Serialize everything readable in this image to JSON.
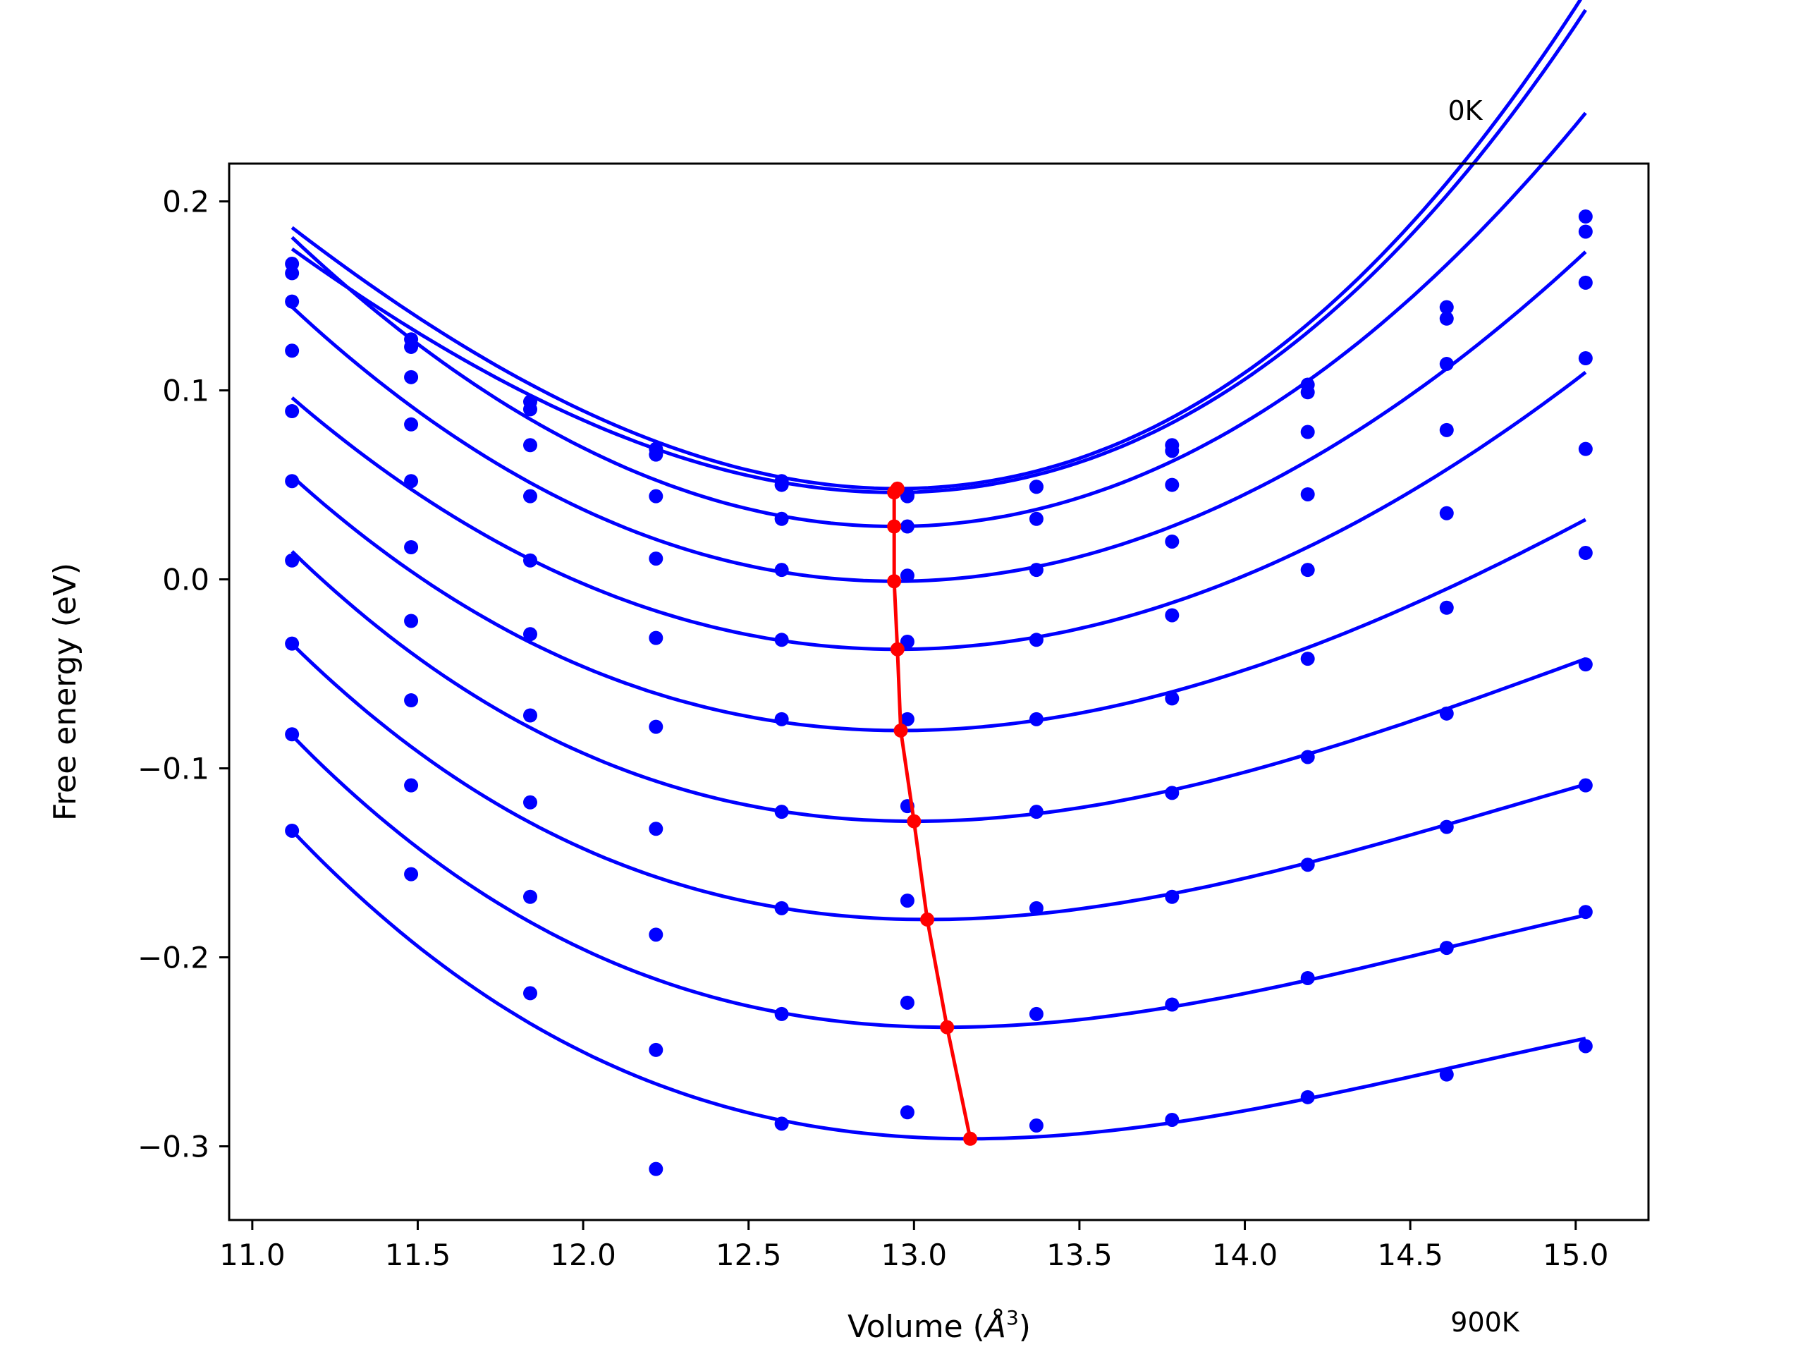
{
  "chart_data": {
    "type": "scatter",
    "title": "",
    "xlabel_prefix": "Volume (",
    "xlabel_unit": "Å",
    "xlabel_exp": "3",
    "xlabel_suffix": ")",
    "ylabel": "Free energy (eV)",
    "xlim": [
      10.93,
      15.22
    ],
    "ylim": [
      -0.339,
      0.22
    ],
    "xticks": [
      11.0,
      11.5,
      12.0,
      12.5,
      13.0,
      13.5,
      14.0,
      14.5,
      15.0
    ],
    "xtick_labels": [
      "11.0",
      "11.5",
      "12.0",
      "12.5",
      "13.0",
      "13.5",
      "14.0",
      "14.5",
      "15.0"
    ],
    "yticks": [
      0.2,
      0.1,
      0.0,
      -0.1,
      -0.2,
      -0.3
    ],
    "ytick_labels": [
      "0.2",
      "0.1",
      "0.0",
      "−0.1",
      "−0.2",
      "−0.3"
    ],
    "grid": false,
    "annotations": {
      "top": "0K",
      "bottom": "900K"
    },
    "colors": {
      "points": "#0000ff",
      "fits": "#0000ff",
      "minima": "#ff0000"
    },
    "volumes": [
      11.12,
      11.48,
      11.84,
      12.22,
      12.6,
      12.98,
      13.37,
      13.78,
      14.19,
      14.61,
      15.03
    ],
    "series": [
      {
        "energies": [
          0.167,
          0.127,
          0.094,
          0.069,
          0.052,
          0.045,
          0.049,
          0.071,
          0.103,
          0.144,
          0.192
        ],
        "fit": {
          "vmin": 12.95,
          "fmin": 0.048,
          "a": 0.0504,
          "b": 0.005
        }
      },
      {
        "energies": [
          0.162,
          0.123,
          0.09,
          0.066,
          0.05,
          0.044,
          0.049,
          0.068,
          0.099,
          0.138,
          0.184
        ],
        "fit": {
          "vmin": 12.94,
          "fmin": 0.046,
          "a": 0.048,
          "b": 0.005
        }
      },
      {
        "energies": [
          0.147,
          0.107,
          0.071,
          0.044,
          0.032,
          0.028,
          0.032,
          0.05,
          0.078,
          0.114,
          0.157
        ],
        "fit": {
          "vmin": 12.94,
          "fmin": 0.028,
          "a": 0.048,
          "b": 0.001
        }
      },
      {
        "energies": [
          0.121,
          0.082,
          0.044,
          0.011,
          0.005,
          0.002,
          0.005,
          0.02,
          0.045,
          0.079,
          0.117
        ],
        "fit": {
          "vmin": 12.94,
          "fmin": -0.001,
          "a": 0.042,
          "b": -0.001
        }
      },
      {
        "energies": [
          0.089,
          0.052,
          0.01,
          -0.031,
          -0.032,
          -0.033,
          -0.032,
          -0.019,
          0.005,
          0.035,
          0.069
        ],
        "fit": {
          "vmin": 12.95,
          "fmin": -0.037,
          "a": 0.037,
          "b": -0.0015
        }
      },
      {
        "energies": [
          0.052,
          0.017,
          -0.029,
          -0.078,
          -0.074,
          -0.074,
          -0.074,
          -0.063,
          -0.042,
          -0.015,
          0.014
        ],
        "fit": {
          "vmin": 12.96,
          "fmin": -0.08,
          "a": 0.0333,
          "b": -0.0035
        }
      },
      {
        "energies": [
          0.01,
          -0.022,
          -0.072,
          -0.132,
          -0.123,
          -0.12,
          -0.123,
          -0.113,
          -0.094,
          -0.071,
          -0.045
        ],
        "fit": {
          "vmin": 13.0,
          "fmin": -0.128,
          "a": 0.031,
          "b": -0.005
        }
      },
      {
        "energies": [
          -0.034,
          -0.064,
          -0.118,
          -0.188,
          -0.174,
          -0.17,
          -0.174,
          -0.168,
          -0.151,
          -0.131,
          -0.109
        ],
        "fit": {
          "vmin": 13.04,
          "fmin": -0.18,
          "a": 0.029,
          "b": -0.0055
        }
      },
      {
        "energies": [
          -0.082,
          -0.109,
          -0.168,
          -0.249,
          -0.23,
          -0.224,
          -0.23,
          -0.225,
          -0.211,
          -0.195,
          -0.176
        ],
        "fit": {
          "vmin": 13.1,
          "fmin": -0.237,
          "a": 0.0275,
          "b": -0.006
        }
      },
      {
        "energies": [
          -0.133,
          -0.156,
          -0.219,
          -0.312,
          -0.288,
          -0.282,
          -0.289,
          -0.286,
          -0.274,
          -0.262,
          -0.247
        ],
        "fit": {
          "vmin": 13.17,
          "fmin": -0.296,
          "a": 0.0265,
          "b": -0.006
        }
      }
    ],
    "minima": [
      {
        "x": 12.95,
        "y": 0.048
      },
      {
        "x": 12.94,
        "y": 0.046
      },
      {
        "x": 12.94,
        "y": 0.028
      },
      {
        "x": 12.94,
        "y": -0.001
      },
      {
        "x": 12.95,
        "y": -0.037
      },
      {
        "x": 12.96,
        "y": -0.08
      },
      {
        "x": 13.0,
        "y": -0.128
      },
      {
        "x": 13.04,
        "y": -0.18
      },
      {
        "x": 13.1,
        "y": -0.237
      },
      {
        "x": 13.17,
        "y": -0.296
      }
    ]
  }
}
